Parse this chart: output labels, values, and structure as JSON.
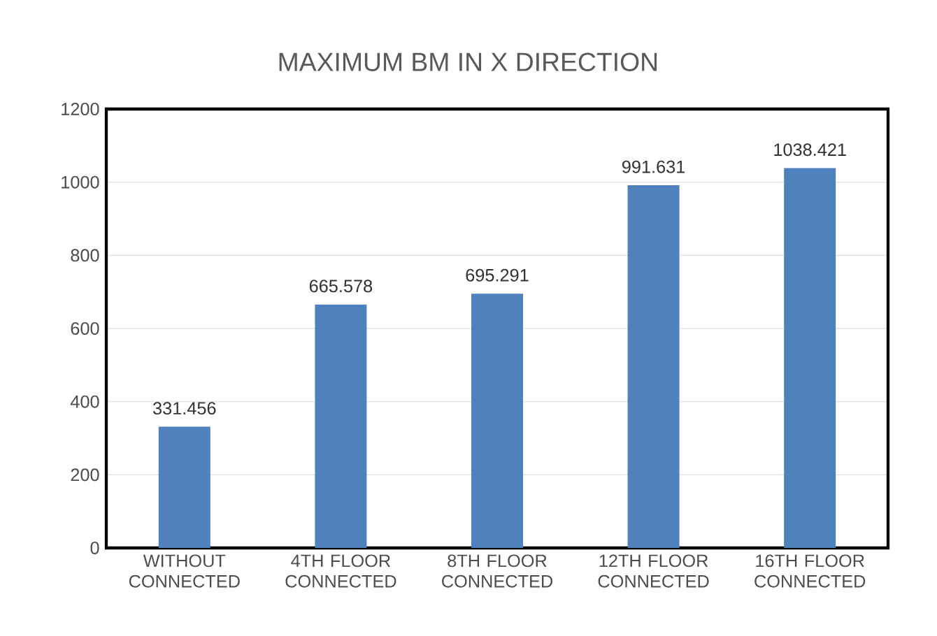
{
  "chart_data": {
    "type": "bar",
    "title": "MAXIMUM BM IN X DIRECTION",
    "categories": [
      "WITHOUT CONNECTED",
      "4TH FLOOR CONNECTED",
      "8TH FLOOR CONNECTED",
      "12TH FLOOR CONNECTED",
      "16TH FLOOR CONNECTED"
    ],
    "values": [
      331.456,
      665.578,
      695.291,
      991.631,
      1038.421
    ],
    "color": "#4f81bd",
    "ylim": [
      0,
      1200
    ],
    "yticks": [
      0,
      200,
      400,
      600,
      800,
      1000,
      1200
    ],
    "grid": "y",
    "data_labels": true
  }
}
